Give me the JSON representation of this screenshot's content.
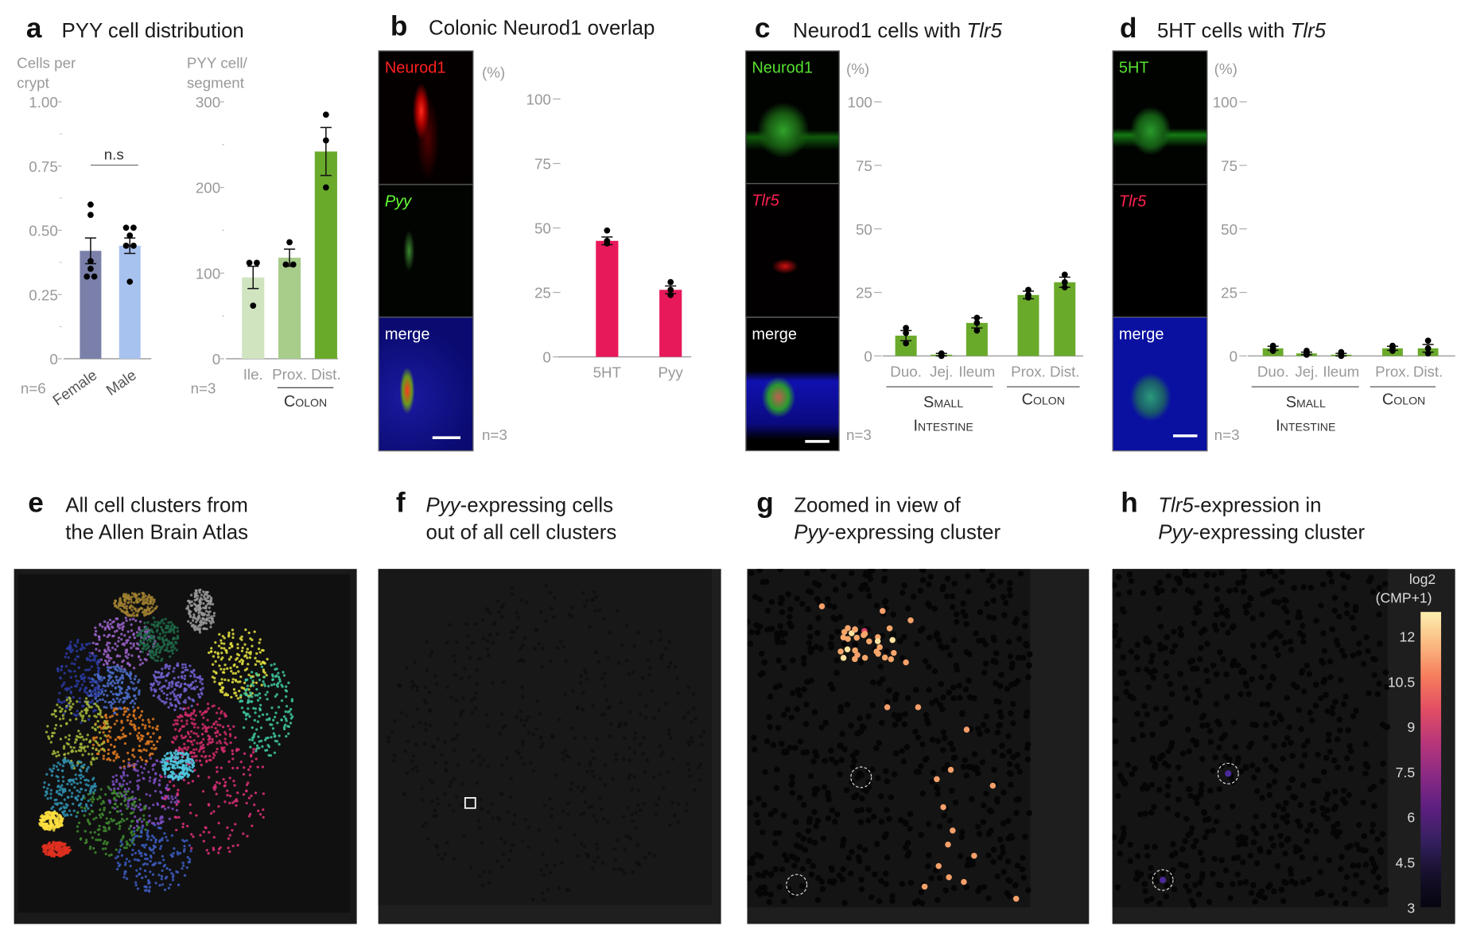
{
  "panels": {
    "a": {
      "letter": "a",
      "title": "PYY cell distribution",
      "ylabel_left": [
        "Cells per",
        "crypt"
      ],
      "ylabel_right": [
        "PYY cell/",
        "segment"
      ],
      "n_left": "n=6",
      "n_right": "n=3",
      "group": "Colon"
    },
    "b": {
      "letter": "b",
      "title": "Colonic Neurod1 overlap",
      "images": [
        "Neurod1",
        "Pyy",
        "merge"
      ],
      "unit": "(%)",
      "n": "n=3"
    },
    "c": {
      "letter": "c",
      "title_plain": "Neurod1 cells with ",
      "title_italic": "Tlr5",
      "images": [
        "Neurod1",
        "Tlr5",
        "merge"
      ],
      "unit": "(%)",
      "n": "n=3",
      "group1": [
        "Small",
        "Intestine"
      ],
      "group2": "Colon"
    },
    "d": {
      "letter": "d",
      "title_plain": "5HT cells with ",
      "title_italic": "Tlr5",
      "images": [
        "5HT",
        "Tlr5",
        "merge"
      ],
      "unit": "(%)",
      "n": "n=3",
      "group1": [
        "Small",
        "Intestine"
      ],
      "group2": "Colon"
    },
    "e": {
      "letter": "e",
      "title": [
        "All cell clusters from",
        "the Allen Brain Atlas"
      ]
    },
    "f": {
      "letter": "f",
      "title_italic": "Pyy",
      "title_rest": "-expressing cells",
      "title_line2": "out of all cell clusters"
    },
    "g": {
      "letter": "g",
      "title_line1": "Zoomed in view of",
      "title_italic": "Pyy",
      "title_rest": "-expressing cluster"
    },
    "h": {
      "letter": "h",
      "title_italic": "Tlr5",
      "title_rest": "-expression in",
      "title_italic2": "Pyy",
      "title_rest2": "-expressing cluster",
      "colorbar": {
        "label": [
          "log2",
          "(CMP+1)"
        ],
        "ticks": [
          "12",
          "10.5",
          "9",
          "7.5",
          "6",
          "4.5",
          "3"
        ],
        "range": [
          3,
          12.8
        ],
        "colormap": "magma"
      }
    }
  },
  "chart_data": [
    {
      "id": "a-crypt",
      "type": "bar",
      "categories": [
        "Female",
        "Male"
      ],
      "values": [
        0.42,
        0.44
      ],
      "errors": [
        0.05,
        0.03
      ],
      "points": [
        [
          0.6,
          0.56,
          0.38,
          0.35,
          0.32,
          0.32
        ],
        [
          0.51,
          0.51,
          0.48,
          0.44,
          0.44,
          0.3
        ]
      ],
      "ylim": [
        0,
        1
      ],
      "yticks": [
        "0",
        "0.25",
        "0.50",
        "0.75",
        "1.00"
      ],
      "ytick_values": [
        0,
        0.25,
        0.5,
        0.75,
        1
      ],
      "colors": [
        "#7b80aa",
        "#a8c2f0"
      ],
      "annotation": "n.s"
    },
    {
      "id": "a-segment",
      "type": "bar",
      "categories": [
        "Ile.",
        "Prox.",
        "Dist."
      ],
      "values": [
        95,
        118,
        242
      ],
      "errors": [
        13,
        10,
        28
      ],
      "points": [
        [
          112,
          112,
          62
        ],
        [
          136,
          110,
          110
        ],
        [
          285,
          255,
          200
        ]
      ],
      "ylim": [
        0,
        300
      ],
      "yticks": [
        "0",
        "100",
        "200",
        "300"
      ],
      "ytick_values": [
        0,
        100,
        200,
        300
      ],
      "colors": [
        "#d1e4c0",
        "#a8cd8a",
        "#6aaa2b"
      ]
    },
    {
      "id": "b-overlap",
      "type": "bar",
      "categories": [
        "5HT",
        "Pyy"
      ],
      "values": [
        45,
        26
      ],
      "errors": [
        1.5,
        1.5
      ],
      "points": [
        [
          49,
          45,
          44
        ],
        [
          29,
          26,
          24
        ]
      ],
      "ylim": [
        0,
        100
      ],
      "yticks": [
        "0",
        "25",
        "50",
        "75",
        "100"
      ],
      "ytick_values": [
        0,
        25,
        50,
        75,
        100
      ],
      "colors": [
        "#e8195a",
        "#e8195a"
      ]
    },
    {
      "id": "c-neurod1-tlr5",
      "type": "bar",
      "categories": [
        "Duo.",
        "Jej.",
        "Ileum",
        "Prox.",
        "Dist."
      ],
      "values": [
        8,
        0.5,
        13,
        24,
        29
      ],
      "errors": [
        2,
        0.5,
        2,
        1.5,
        2
      ],
      "points": [
        [
          11,
          9,
          5
        ],
        [
          1,
          0.5,
          0
        ],
        [
          15,
          13,
          10
        ],
        [
          26,
          24,
          23
        ],
        [
          32,
          29,
          27
        ]
      ],
      "ylim": [
        0,
        100
      ],
      "yticks": [
        "0",
        "25",
        "50",
        "75",
        "100"
      ],
      "ytick_values": [
        0,
        25,
        50,
        75,
        100
      ],
      "colors": [
        "#6aaa2b",
        "#6aaa2b",
        "#6aaa2b",
        "#6aaa2b",
        "#6aaa2b"
      ]
    },
    {
      "id": "d-5ht-tlr5",
      "type": "bar",
      "categories": [
        "Duo.",
        "Jej.",
        "Ileum",
        "Prox.",
        "Dist."
      ],
      "values": [
        3,
        1,
        0.5,
        3,
        3
      ],
      "errors": [
        0.8,
        0.5,
        0.5,
        0.8,
        1.5
      ],
      "points": [
        [
          4,
          3,
          2
        ],
        [
          2,
          1,
          0.5
        ],
        [
          1.5,
          0.5,
          0
        ],
        [
          4,
          3,
          2
        ],
        [
          6,
          3,
          1
        ]
      ],
      "ylim": [
        0,
        100
      ],
      "yticks": [
        "0",
        "25",
        "50",
        "75",
        "100"
      ],
      "ytick_values": [
        0,
        25,
        50,
        75,
        100
      ],
      "colors": [
        "#6aaa2b",
        "#6aaa2b",
        "#6aaa2b",
        "#6aaa2b",
        "#6aaa2b"
      ]
    }
  ]
}
